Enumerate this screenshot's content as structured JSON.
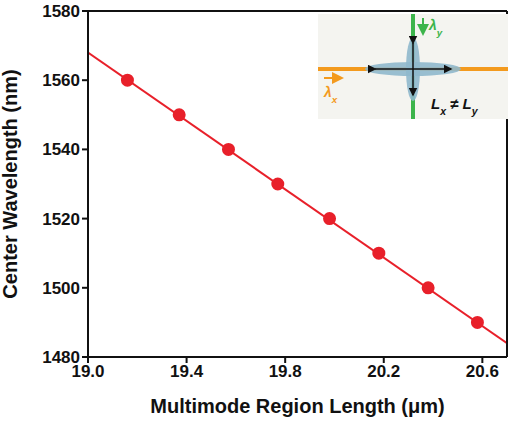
{
  "chart_data": {
    "type": "scatter",
    "xlabel": "Multimode Region Length (μm)",
    "ylabel": "Center Wavelength (nm)",
    "xlim": [
      19.0,
      20.7
    ],
    "ylim": [
      1480,
      1580
    ],
    "xticks": [
      {
        "value": 19,
        "label": "19.0"
      },
      19.4,
      19.8,
      20.2,
      20.6
    ],
    "yticks": [
      1480,
      1500,
      1520,
      1540,
      1560,
      1580
    ],
    "grid": false,
    "series": [
      {
        "type": "scatter",
        "color": "#e8202a",
        "marker": "circle",
        "x": [
          19.16,
          19.37,
          19.57,
          19.77,
          19.98,
          20.18,
          20.38,
          20.58
        ],
        "values": [
          1560,
          1550,
          1540,
          1530,
          1520,
          1510,
          1500,
          1490
        ]
      },
      {
        "type": "line",
        "color": "#e8202a",
        "line_style": "solid",
        "x": [
          19.0,
          20.7
        ],
        "values": [
          1568,
          1484
        ]
      }
    ],
    "annotations": [
      "λy",
      "λx",
      "Lx ≠ Ly"
    ]
  }
}
